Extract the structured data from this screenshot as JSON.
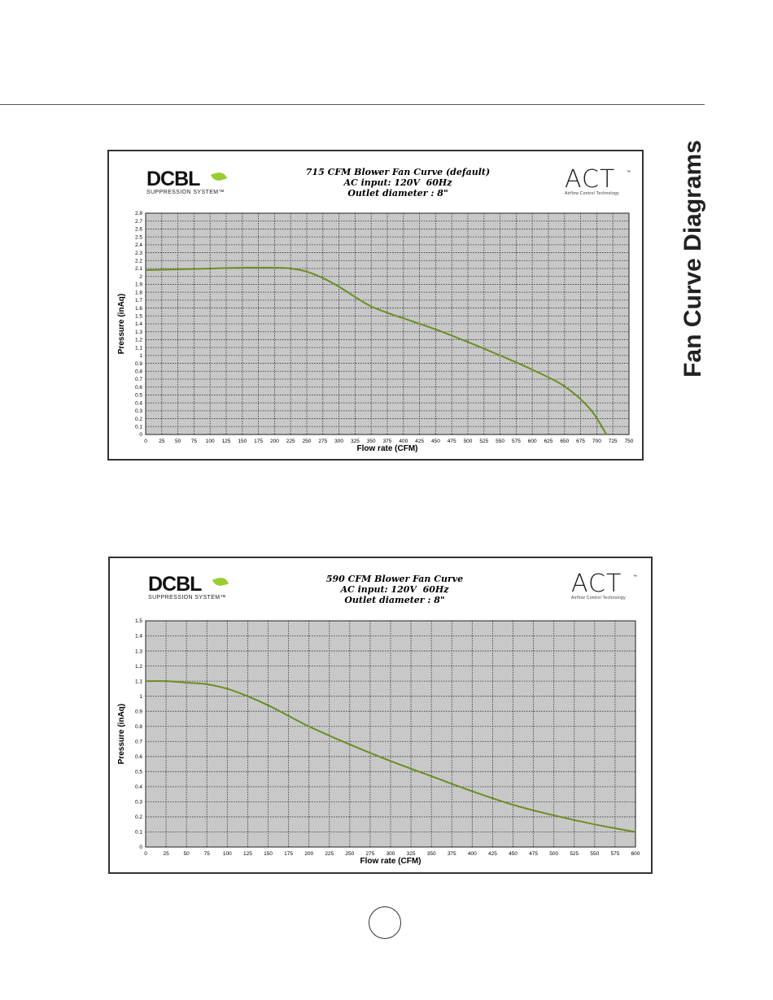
{
  "page": {
    "side_title": "Fan Curve Diagrams",
    "page_number": ""
  },
  "chart_data": [
    {
      "type": "line",
      "title_lines": [
        "715 CFM Blower Fan Curve (default)",
        "AC input: 120V  60Hz",
        "Outlet diameter : 8\""
      ],
      "xlabel": "Flow rate  (CFM)",
      "ylabel": "Pressure (inAq)",
      "xlim": [
        0,
        750
      ],
      "ylim": [
        0,
        2.8
      ],
      "x_ticks": [
        0,
        25,
        50,
        75,
        100,
        125,
        150,
        175,
        200,
        225,
        250,
        275,
        300,
        325,
        350,
        375,
        400,
        425,
        450,
        475,
        500,
        525,
        550,
        575,
        600,
        625,
        650,
        675,
        700,
        725,
        750
      ],
      "y_ticks": [
        0,
        0.1,
        0.2,
        0.3,
        0.4,
        0.5,
        0.6,
        0.7,
        0.8,
        0.9,
        1,
        1.1,
        1.2,
        1.3,
        1.4,
        1.5,
        1.6,
        1.7,
        1.8,
        1.9,
        2,
        2.1,
        2.2,
        2.3,
        2.4,
        2.5,
        2.6,
        2.7,
        2.8
      ],
      "grid": true,
      "colors": {
        "line": "#6b8e23",
        "plot_bg": "#c8c8c8",
        "grid": "#333333"
      },
      "series": [
        {
          "x": [
            0,
            50,
            100,
            150,
            200,
            225,
            250,
            275,
            300,
            325,
            350,
            375,
            400,
            450,
            500,
            550,
            600,
            650,
            690,
            715
          ],
          "y": [
            2.08,
            2.09,
            2.1,
            2.11,
            2.11,
            2.1,
            2.06,
            1.98,
            1.87,
            1.74,
            1.62,
            1.54,
            1.47,
            1.33,
            1.17,
            1.0,
            0.82,
            0.61,
            0.32,
            0.0
          ]
        }
      ]
    },
    {
      "type": "line",
      "title_lines": [
        "590 CFM Blower Fan Curve",
        "AC input: 120V  60Hz",
        "Outlet diameter : 8\""
      ],
      "xlabel": "Flow rate  (CFM)",
      "ylabel": "Pressure (inAq)",
      "xlim": [
        0,
        600
      ],
      "ylim": [
        0,
        1.5
      ],
      "x_ticks": [
        0,
        25,
        50,
        75,
        100,
        125,
        150,
        175,
        200,
        225,
        250,
        275,
        300,
        325,
        350,
        375,
        400,
        425,
        450,
        475,
        500,
        525,
        550,
        575,
        600
      ],
      "y_ticks": [
        0,
        0.1,
        0.2,
        0.3,
        0.4,
        0.5,
        0.6,
        0.7,
        0.8,
        0.9,
        1,
        1.1,
        1.2,
        1.3,
        1.4,
        1.5
      ],
      "grid": true,
      "colors": {
        "line": "#6b8e23",
        "plot_bg": "#c8c8c8",
        "grid": "#333333"
      },
      "series": [
        {
          "x": [
            0,
            25,
            50,
            75,
            100,
            125,
            150,
            175,
            200,
            250,
            300,
            350,
            400,
            450,
            500,
            550,
            600
          ],
          "y": [
            1.1,
            1.1,
            1.09,
            1.08,
            1.05,
            1.0,
            0.94,
            0.87,
            0.8,
            0.68,
            0.57,
            0.47,
            0.37,
            0.28,
            0.21,
            0.15,
            0.1
          ]
        }
      ]
    }
  ],
  "logos": {
    "dcbl_word": "DCBL",
    "dcbl_sub": "SUPPRESSION SYSTEM™",
    "act_word": "ACT",
    "act_sub": "Airflow  Control  Technology",
    "act_tm": "™"
  }
}
